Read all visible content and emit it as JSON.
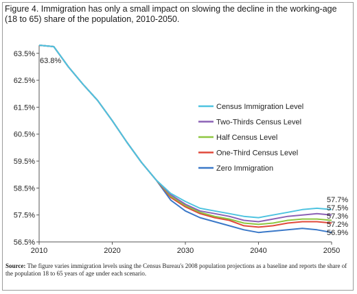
{
  "title": "Figure 4. Immigration has only a small impact on slowing the decline in the working-age (18 to 65) share of the population, 2010-2050.",
  "source": {
    "label": "Source:",
    "text": "The figure varies immigration levels using the Census Bureau's 2008 population projections as a baseline and reports the share of the population 18 to 65 years of age under each scenario."
  },
  "chart_data": {
    "type": "line",
    "xlim": [
      2010,
      2050
    ],
    "ylim": [
      56.5,
      63.8
    ],
    "xticks": [
      2010,
      2020,
      2030,
      2040,
      2050
    ],
    "yticks": [
      56.5,
      57.5,
      58.5,
      59.5,
      60.5,
      61.5,
      62.5,
      63.5
    ],
    "ytick_labels": [
      "56.5%",
      "57.5%",
      "58.5%",
      "59.5%",
      "60.5%",
      "61.5%",
      "62.5%",
      "63.5%"
    ],
    "grid": false,
    "legend_position": "right",
    "start_annotation": "63.8%",
    "end_labels": [
      "57.7%",
      "57.5%",
      "57.3%",
      "57.2%",
      "56.9%"
    ],
    "x": [
      2010,
      2012,
      2014,
      2016,
      2018,
      2020,
      2022,
      2024,
      2026,
      2028,
      2030,
      2032,
      2034,
      2036,
      2038,
      2040,
      2042,
      2044,
      2046,
      2048,
      2050
    ],
    "series": [
      {
        "name": "Census Immigration Level",
        "color": "#4ec3e0",
        "values": [
          63.8,
          63.75,
          63.0,
          62.35,
          61.75,
          61.0,
          60.2,
          59.45,
          58.8,
          58.3,
          58.0,
          57.75,
          57.65,
          57.55,
          57.45,
          57.4,
          57.5,
          57.6,
          57.7,
          57.75,
          57.7
        ]
      },
      {
        "name": "Two-Thirds Census Level",
        "color": "#8b61b5",
        "values": [
          63.8,
          63.75,
          63.0,
          62.35,
          61.75,
          61.0,
          60.2,
          59.45,
          58.8,
          58.25,
          57.9,
          57.65,
          57.55,
          57.45,
          57.3,
          57.25,
          57.35,
          57.45,
          57.5,
          57.55,
          57.5
        ]
      },
      {
        "name": "Half Census Level",
        "color": "#8dc63f",
        "values": [
          63.8,
          63.75,
          63.0,
          62.35,
          61.75,
          61.0,
          60.2,
          59.45,
          58.8,
          58.2,
          57.85,
          57.6,
          57.45,
          57.35,
          57.2,
          57.15,
          57.2,
          57.3,
          57.35,
          57.35,
          57.3
        ]
      },
      {
        "name": "One-Third Census Level",
        "color": "#e0483a",
        "values": [
          63.8,
          63.75,
          63.0,
          62.35,
          61.75,
          61.0,
          60.2,
          59.45,
          58.8,
          58.15,
          57.8,
          57.55,
          57.4,
          57.3,
          57.1,
          57.05,
          57.1,
          57.2,
          57.25,
          57.25,
          57.2
        ]
      },
      {
        "name": "Zero Immigration",
        "color": "#3a78c8",
        "values": [
          63.8,
          63.75,
          63.0,
          62.35,
          61.75,
          61.0,
          60.2,
          59.45,
          58.8,
          58.05,
          57.65,
          57.4,
          57.25,
          57.1,
          56.95,
          56.85,
          56.9,
          56.95,
          57.0,
          56.95,
          56.85
        ]
      }
    ]
  }
}
